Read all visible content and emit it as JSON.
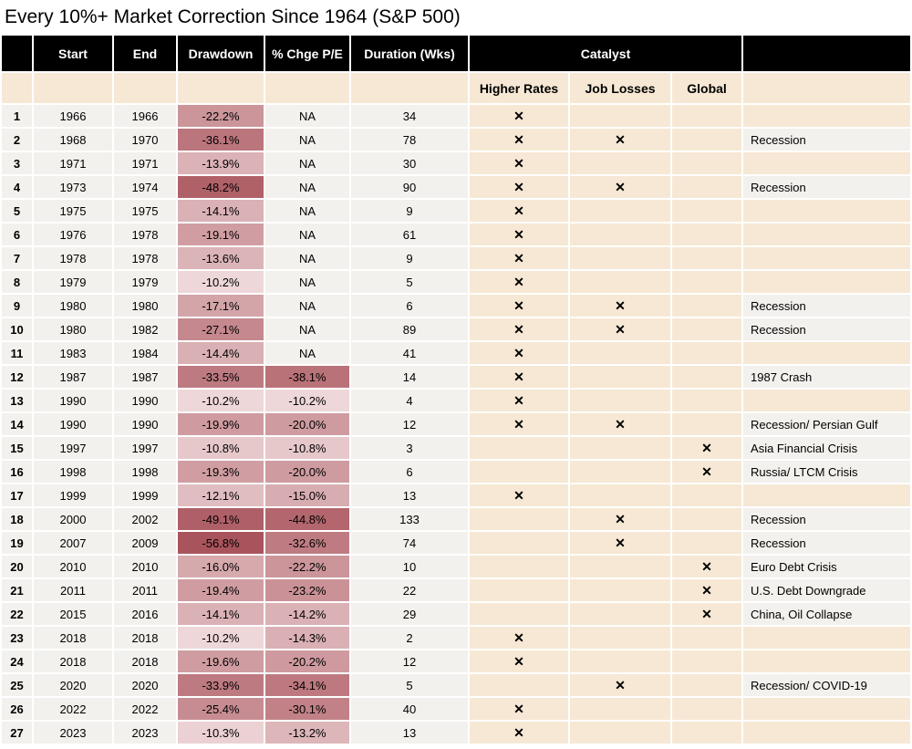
{
  "title": "Every 10%+ Market Correction Since 1964 (S&P 500)",
  "x_mark": "✕",
  "colors": {
    "header_bg": "#000000",
    "header_text": "#ffffff",
    "beige": "#f6e8d4",
    "row_bg": "#f2f1ed",
    "heat_light": "#eed7d9",
    "heat_dark": "#a9545c",
    "page_bg": "#ffffff"
  },
  "chart_data": {
    "type": "table",
    "title": "Every 10%+ Market Correction Since 1964 (S&P 500)",
    "header": {
      "start": "Start",
      "end": "End",
      "drawdown": "Drawdown",
      "pe_change": "% Chge P/E",
      "duration": "Duration (Wks)",
      "catalyst": "Catalyst"
    },
    "subheader": {
      "higher_rates": "Higher Rates",
      "job_losses": "Job Losses",
      "global": "Global"
    },
    "rows": [
      {
        "n": "1",
        "start": "1966",
        "end": "1966",
        "drawdown": "-22.2%",
        "pe_change": "NA",
        "duration": "34",
        "higher_rates": true,
        "job_losses": false,
        "global": false,
        "note": ""
      },
      {
        "n": "2",
        "start": "1968",
        "end": "1970",
        "drawdown": "-36.1%",
        "pe_change": "NA",
        "duration": "78",
        "higher_rates": true,
        "job_losses": true,
        "global": false,
        "note": "Recession"
      },
      {
        "n": "3",
        "start": "1971",
        "end": "1971",
        "drawdown": "-13.9%",
        "pe_change": "NA",
        "duration": "30",
        "higher_rates": true,
        "job_losses": false,
        "global": false,
        "note": ""
      },
      {
        "n": "4",
        "start": "1973",
        "end": "1974",
        "drawdown": "-48.2%",
        "pe_change": "NA",
        "duration": "90",
        "higher_rates": true,
        "job_losses": true,
        "global": false,
        "note": "Recession"
      },
      {
        "n": "5",
        "start": "1975",
        "end": "1975",
        "drawdown": "-14.1%",
        "pe_change": "NA",
        "duration": "9",
        "higher_rates": true,
        "job_losses": false,
        "global": false,
        "note": ""
      },
      {
        "n": "6",
        "start": "1976",
        "end": "1978",
        "drawdown": "-19.1%",
        "pe_change": "NA",
        "duration": "61",
        "higher_rates": true,
        "job_losses": false,
        "global": false,
        "note": ""
      },
      {
        "n": "7",
        "start": "1978",
        "end": "1978",
        "drawdown": "-13.6%",
        "pe_change": "NA",
        "duration": "9",
        "higher_rates": true,
        "job_losses": false,
        "global": false,
        "note": ""
      },
      {
        "n": "8",
        "start": "1979",
        "end": "1979",
        "drawdown": "-10.2%",
        "pe_change": "NA",
        "duration": "5",
        "higher_rates": true,
        "job_losses": false,
        "global": false,
        "note": ""
      },
      {
        "n": "9",
        "start": "1980",
        "end": "1980",
        "drawdown": "-17.1%",
        "pe_change": "NA",
        "duration": "6",
        "higher_rates": true,
        "job_losses": true,
        "global": false,
        "note": "Recession"
      },
      {
        "n": "10",
        "start": "1980",
        "end": "1982",
        "drawdown": "-27.1%",
        "pe_change": "NA",
        "duration": "89",
        "higher_rates": true,
        "job_losses": true,
        "global": false,
        "note": "Recession"
      },
      {
        "n": "11",
        "start": "1983",
        "end": "1984",
        "drawdown": "-14.4%",
        "pe_change": "NA",
        "duration": "41",
        "higher_rates": true,
        "job_losses": false,
        "global": false,
        "note": ""
      },
      {
        "n": "12",
        "start": "1987",
        "end": "1987",
        "drawdown": "-33.5%",
        "pe_change": "-38.1%",
        "duration": "14",
        "higher_rates": true,
        "job_losses": false,
        "global": false,
        "note": "1987 Crash"
      },
      {
        "n": "13",
        "start": "1990",
        "end": "1990",
        "drawdown": "-10.2%",
        "pe_change": "-10.2%",
        "duration": "4",
        "higher_rates": true,
        "job_losses": false,
        "global": false,
        "note": ""
      },
      {
        "n": "14",
        "start": "1990",
        "end": "1990",
        "drawdown": "-19.9%",
        "pe_change": "-20.0%",
        "duration": "12",
        "higher_rates": true,
        "job_losses": true,
        "global": false,
        "note": "Recession/ Persian Gulf"
      },
      {
        "n": "15",
        "start": "1997",
        "end": "1997",
        "drawdown": "-10.8%",
        "pe_change": "-10.8%",
        "duration": "3",
        "higher_rates": false,
        "job_losses": false,
        "global": true,
        "note": "Asia Financial Crisis"
      },
      {
        "n": "16",
        "start": "1998",
        "end": "1998",
        "drawdown": "-19.3%",
        "pe_change": "-20.0%",
        "duration": "6",
        "higher_rates": false,
        "job_losses": false,
        "global": true,
        "note": "Russia/ LTCM Crisis"
      },
      {
        "n": "17",
        "start": "1999",
        "end": "1999",
        "drawdown": "-12.1%",
        "pe_change": "-15.0%",
        "duration": "13",
        "higher_rates": true,
        "job_losses": false,
        "global": false,
        "note": ""
      },
      {
        "n": "18",
        "start": "2000",
        "end": "2002",
        "drawdown": "-49.1%",
        "pe_change": "-44.8%",
        "duration": "133",
        "higher_rates": false,
        "job_losses": true,
        "global": false,
        "note": "Recession"
      },
      {
        "n": "19",
        "start": "2007",
        "end": "2009",
        "drawdown": "-56.8%",
        "pe_change": "-32.6%",
        "duration": "74",
        "higher_rates": false,
        "job_losses": true,
        "global": false,
        "note": "Recession"
      },
      {
        "n": "20",
        "start": "2010",
        "end": "2010",
        "drawdown": "-16.0%",
        "pe_change": "-22.2%",
        "duration": "10",
        "higher_rates": false,
        "job_losses": false,
        "global": true,
        "note": "Euro Debt Crisis"
      },
      {
        "n": "21",
        "start": "2011",
        "end": "2011",
        "drawdown": "-19.4%",
        "pe_change": "-23.2%",
        "duration": "22",
        "higher_rates": false,
        "job_losses": false,
        "global": true,
        "note": "U.S. Debt Downgrade"
      },
      {
        "n": "22",
        "start": "2015",
        "end": "2016",
        "drawdown": "-14.1%",
        "pe_change": "-14.2%",
        "duration": "29",
        "higher_rates": false,
        "job_losses": false,
        "global": true,
        "note": "China, Oil Collapse"
      },
      {
        "n": "23",
        "start": "2018",
        "end": "2018",
        "drawdown": "-10.2%",
        "pe_change": "-14.3%",
        "duration": "2",
        "higher_rates": true,
        "job_losses": false,
        "global": false,
        "note": ""
      },
      {
        "n": "24",
        "start": "2018",
        "end": "2018",
        "drawdown": "-19.6%",
        "pe_change": "-20.2%",
        "duration": "12",
        "higher_rates": true,
        "job_losses": false,
        "global": false,
        "note": ""
      },
      {
        "n": "25",
        "start": "2020",
        "end": "2020",
        "drawdown": "-33.9%",
        "pe_change": "-34.1%",
        "duration": "5",
        "higher_rates": false,
        "job_losses": true,
        "global": false,
        "note": "Recession/ COVID-19"
      },
      {
        "n": "26",
        "start": "2022",
        "end": "2022",
        "drawdown": "-25.4%",
        "pe_change": "-30.1%",
        "duration": "40",
        "higher_rates": true,
        "job_losses": false,
        "global": false,
        "note": ""
      },
      {
        "n": "27",
        "start": "2023",
        "end": "2023",
        "drawdown": "-10.3%",
        "pe_change": "-13.2%",
        "duration": "13",
        "higher_rates": true,
        "job_losses": false,
        "global": false,
        "note": ""
      }
    ]
  }
}
